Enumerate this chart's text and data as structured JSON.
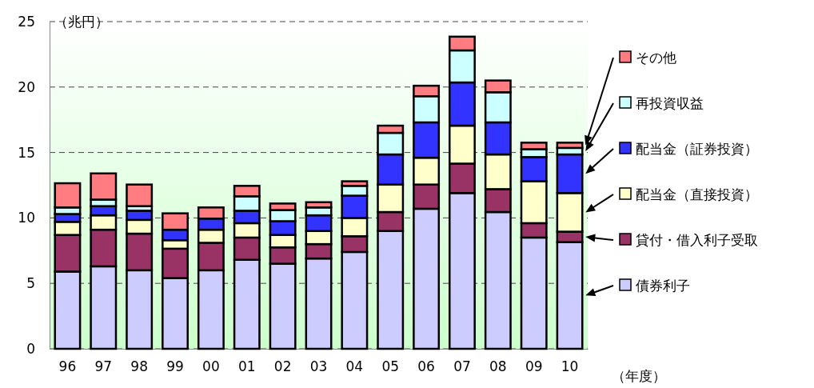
{
  "chart_data": {
    "type": "bar",
    "stacked": true,
    "ylabel": "（兆円）",
    "xlabel": "（年度）",
    "categories": [
      "96",
      "97",
      "98",
      "99",
      "00",
      "01",
      "02",
      "03",
      "04",
      "05",
      "06",
      "07",
      "08",
      "09",
      "10"
    ],
    "ylim": [
      0,
      25
    ],
    "yticks": [
      0,
      5,
      10,
      15,
      20,
      25
    ],
    "grid": "y",
    "legend": "right",
    "series": [
      {
        "name": "債券利子",
        "color": "#ccccff",
        "values": [
          5.9,
          6.3,
          6.0,
          5.4,
          6.0,
          6.8,
          6.5,
          6.9,
          7.4,
          9.0,
          10.7,
          11.9,
          10.45,
          8.5,
          8.15
        ]
      },
      {
        "name": "貸付・借入利子受取",
        "color": "#993366",
        "values": [
          2.8,
          2.8,
          2.8,
          2.25,
          2.1,
          1.7,
          1.25,
          1.1,
          1.2,
          1.45,
          1.85,
          2.25,
          1.75,
          1.1,
          0.8
        ]
      },
      {
        "name": "配当金（直接投資）",
        "color": "#ffffcc",
        "values": [
          1.0,
          1.1,
          1.05,
          0.65,
          1.0,
          1.1,
          0.95,
          1.0,
          1.4,
          2.1,
          2.05,
          2.9,
          2.65,
          3.2,
          2.95
        ]
      },
      {
        "name": "配当金（証券投資）",
        "color": "#3333ff",
        "values": [
          0.6,
          0.7,
          0.7,
          0.8,
          0.85,
          0.95,
          1.05,
          1.2,
          1.7,
          2.3,
          2.7,
          3.3,
          2.45,
          1.85,
          2.95
        ]
      },
      {
        "name": "再投資収益",
        "color": "#ccffff",
        "values": [
          0.5,
          0.5,
          0.35,
          0.0,
          null,
          1.1,
          0.85,
          0.6,
          0.75,
          1.65,
          2.0,
          2.45,
          2.3,
          0.6,
          0.5
        ]
      },
      {
        "name": "その他",
        "color": "#ff7c80",
        "values": [
          1.85,
          2.0,
          1.65,
          1.25,
          0.85,
          0.8,
          0.5,
          0.4,
          0.35,
          0.55,
          0.8,
          1.05,
          0.9,
          0.5,
          0.4
        ]
      }
    ]
  }
}
